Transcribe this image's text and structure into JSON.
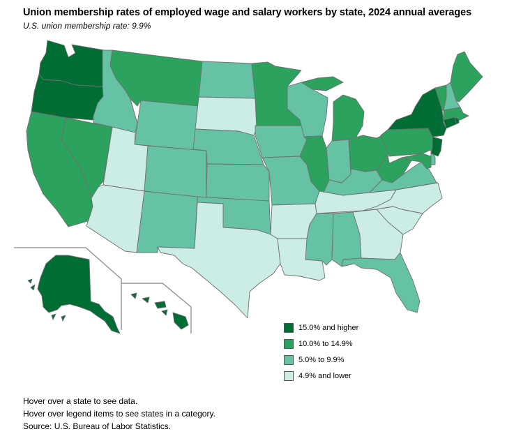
{
  "title": "Union membership rates of employed wage and salary workers by state, 2024 annual averages",
  "subtitle": "U.S. union membership rate: 9.9%",
  "colors": {
    "high": "#006d35",
    "mid_high": "#2ca25f",
    "mid_low": "#66c2a4",
    "low": "#ccece6"
  },
  "legend": [
    {
      "label": "15.0% and higher",
      "category": "high"
    },
    {
      "label": "10.0% to 14.9%",
      "category": "mid_high"
    },
    {
      "label": "5.0% to 9.9%",
      "category": "mid_low"
    },
    {
      "label": "4.9% and lower",
      "category": "low"
    }
  ],
  "states": {
    "WA": "high",
    "OR": "high",
    "CA": "mid_high",
    "NV": "mid_high",
    "ID": "mid_low",
    "MT": "mid_high",
    "WY": "mid_low",
    "UT": "low",
    "AZ": "low",
    "CO": "mid_low",
    "NM": "mid_low",
    "ND": "mid_low",
    "SD": "low",
    "NE": "mid_low",
    "KS": "mid_low",
    "OK": "mid_low",
    "TX": "low",
    "MN": "mid_high",
    "IA": "mid_low",
    "MO": "mid_low",
    "AR": "low",
    "LA": "low",
    "WI": "mid_low",
    "IL": "mid_high",
    "MI": "mid_high",
    "IN": "mid_low",
    "OH": "mid_high",
    "KY": "mid_low",
    "TN": "low",
    "MS": "mid_low",
    "AL": "mid_low",
    "GA": "low",
    "FL": "mid_low",
    "SC": "low",
    "NC": "low",
    "VA": "mid_low",
    "WV": "mid_high",
    "PA": "mid_high",
    "NY": "high",
    "NJ": "high",
    "DE": "mid_low",
    "MD": "mid_high",
    "CT": "high",
    "RI": "high",
    "MA": "mid_high",
    "VT": "mid_high",
    "NH": "mid_low",
    "ME": "mid_high",
    "AK": "high",
    "HI": "high"
  },
  "notes": [
    "Hover over a state to see data.",
    "Hover over legend items to see states in a category.",
    "Source: U.S. Bureau of Labor Statistics."
  ]
}
